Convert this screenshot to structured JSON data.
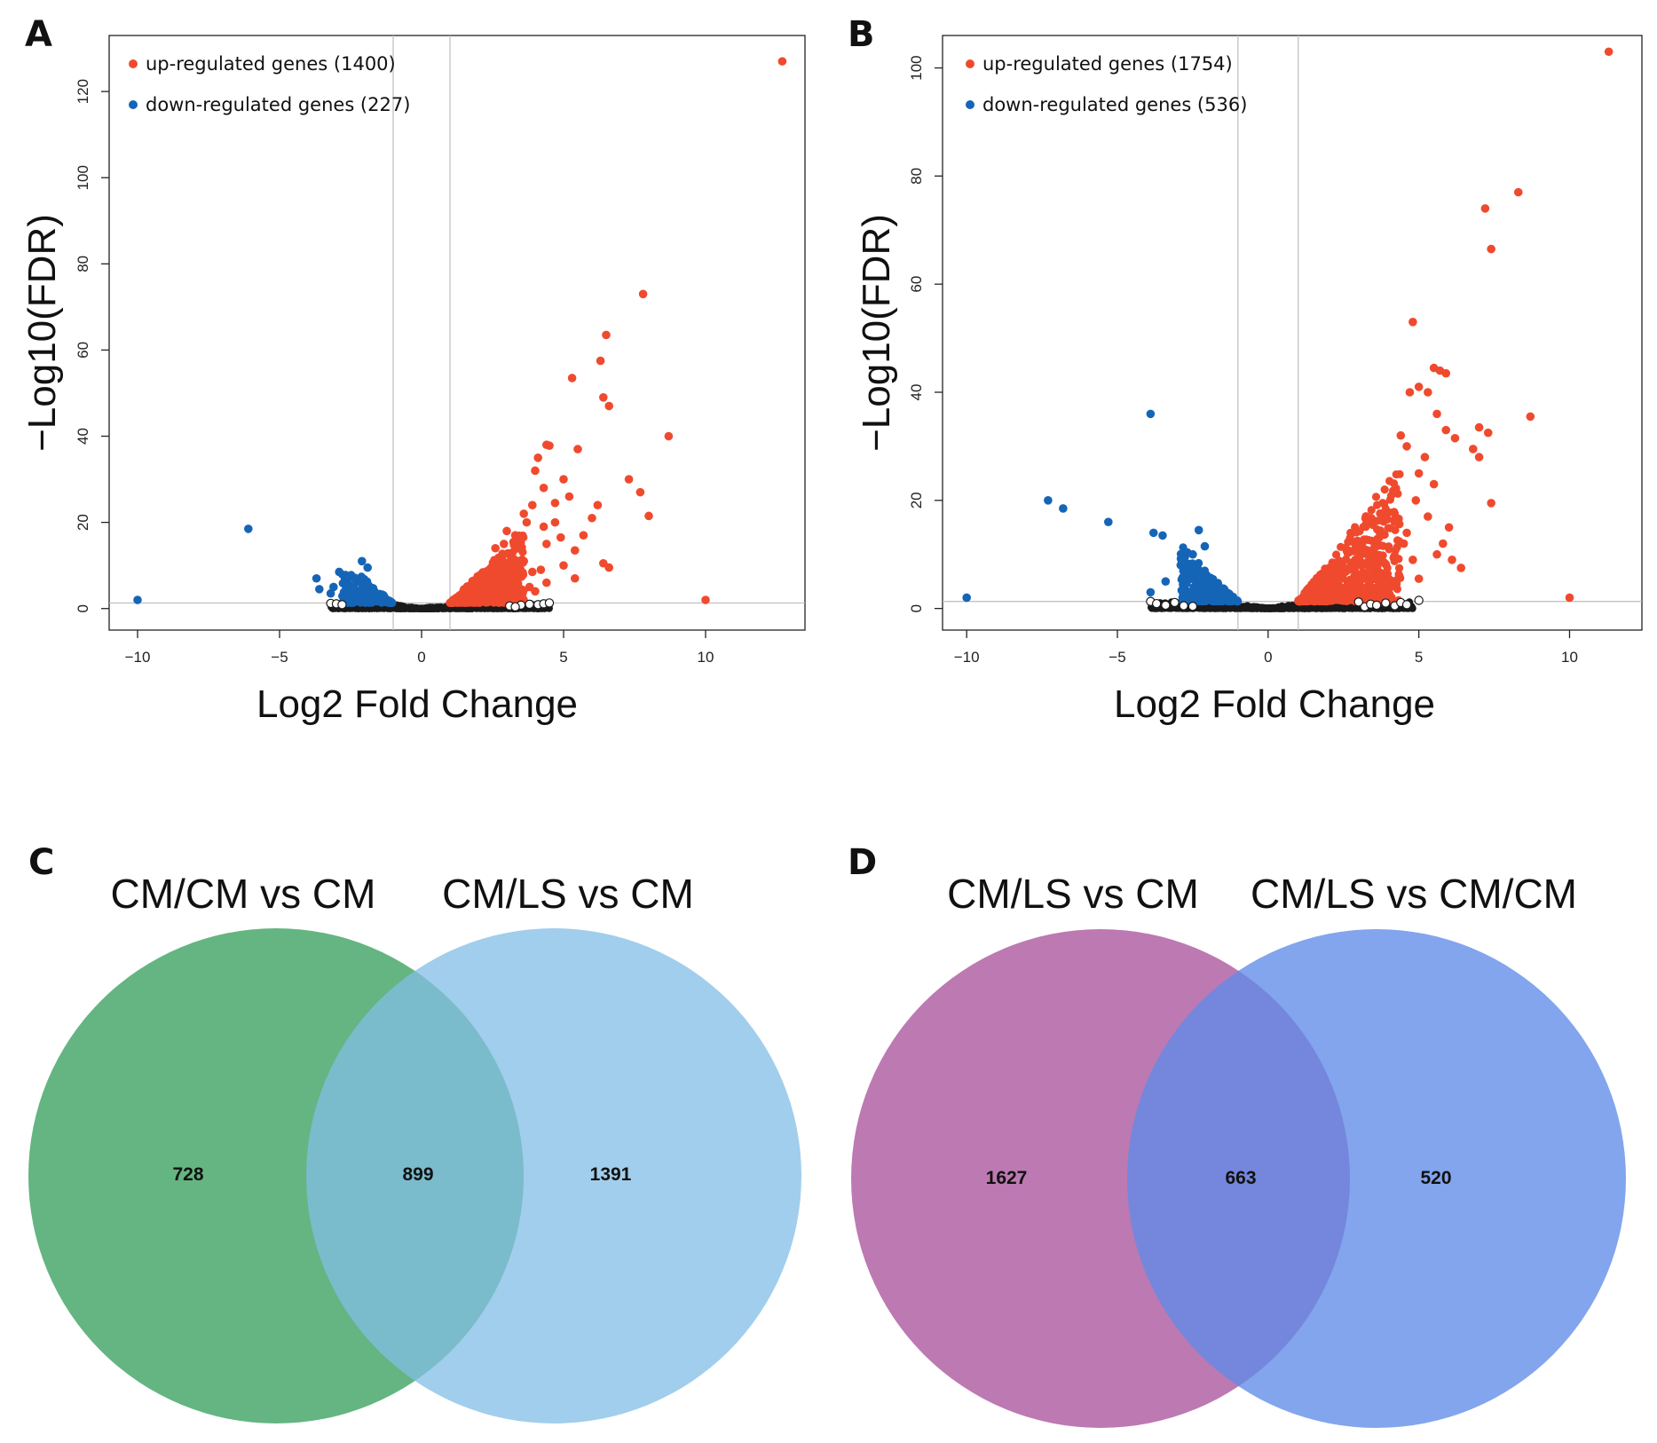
{
  "colors": {
    "up": "#f04a2e",
    "down": "#1565b7",
    "ns": "#1a1a1a",
    "venn_c_left": "#3da261",
    "venn_c_right": "#81bde6",
    "venn_d_left": "#ad579f",
    "venn_d_right": "#5f8ce8"
  },
  "chart_data": [
    {
      "panel": "A",
      "type": "scatter",
      "xlabel": "Log2 Fold Change",
      "ylabel": "−Log10(FDR)",
      "xlim": [
        -11,
        13.5
      ],
      "ylim": [
        -5,
        133
      ],
      "xticks": [
        -10,
        -5,
        0,
        5,
        10
      ],
      "xtick_labels": [
        "−10",
        "−5",
        "0",
        "5",
        "10"
      ],
      "yticks": [
        0,
        20,
        40,
        60,
        80,
        100,
        120
      ],
      "ytick_labels": [
        "0",
        "20",
        "40",
        "60",
        "80",
        "100",
        "120"
      ],
      "vlines": [
        -1,
        1
      ],
      "hline": 1.3,
      "legend_position": "top-left",
      "legend": [
        {
          "label": "up-regulated genes (1400)",
          "class": "up"
        },
        {
          "label": "down-regulated genes (227)",
          "class": "down"
        }
      ],
      "up_points": [
        [
          12.7,
          127
        ],
        [
          7.8,
          73
        ],
        [
          6.5,
          63.5
        ],
        [
          6.3,
          57.5
        ],
        [
          5.3,
          53.5
        ],
        [
          6.4,
          49
        ],
        [
          6.6,
          47
        ],
        [
          8.7,
          40
        ],
        [
          4.4,
          38
        ],
        [
          4.5,
          37.8
        ],
        [
          5.5,
          37
        ],
        [
          4.1,
          35
        ],
        [
          4.0,
          32
        ],
        [
          5.0,
          30
        ],
        [
          7.3,
          30
        ],
        [
          4.3,
          28
        ],
        [
          7.7,
          27
        ],
        [
          5.2,
          26
        ],
        [
          6.2,
          24
        ],
        [
          4.7,
          24.5
        ],
        [
          3.9,
          24
        ],
        [
          8.0,
          21.5
        ],
        [
          6.0,
          21
        ],
        [
          4.7,
          20
        ],
        [
          3.6,
          22
        ],
        [
          3.7,
          20
        ],
        [
          4.3,
          19
        ],
        [
          5.7,
          17
        ],
        [
          4.9,
          16.5
        ],
        [
          4.4,
          15
        ],
        [
          5.4,
          13.5
        ],
        [
          3.3,
          17
        ],
        [
          3.0,
          18
        ],
        [
          6.4,
          10.5
        ],
        [
          6.6,
          9.5
        ],
        [
          5.0,
          10
        ],
        [
          5.4,
          7
        ],
        [
          4.2,
          9
        ],
        [
          4.4,
          6
        ],
        [
          3.8,
          5
        ],
        [
          3.2,
          13
        ],
        [
          2.9,
          15
        ],
        [
          3.4,
          8
        ],
        [
          3.6,
          11
        ],
        [
          3.9,
          8.5
        ],
        [
          4.0,
          4
        ],
        [
          10.0,
          2
        ],
        [
          2.6,
          14
        ]
      ],
      "up_dense": {
        "count": 520,
        "xmin": 1.0,
        "xmax": 3.6,
        "ymin": 1.3,
        "ymax_scale": 6.5,
        "ymax_cap": 18,
        "seed": 11
      },
      "down_points": [
        [
          -10,
          2
        ],
        [
          -6.1,
          18.5
        ],
        [
          -3.7,
          7
        ],
        [
          -3.6,
          4.5
        ],
        [
          -3.1,
          5
        ],
        [
          -2.9,
          8.5
        ],
        [
          -2.7,
          4
        ],
        [
          -2.3,
          6.5
        ],
        [
          -2.1,
          11
        ],
        [
          -1.9,
          9.5
        ],
        [
          -2.5,
          3
        ],
        [
          -3.2,
          3.5
        ]
      ],
      "down_dense": {
        "count": 130,
        "xmin": -2.8,
        "xmax": -1.0,
        "ymin": 1.3,
        "ymax_scale": 5.5,
        "ymax_cap": 8,
        "seed": 7
      },
      "ns_dense": {
        "count": 900,
        "xmin": -3.2,
        "xmax": 4.5,
        "seed": 3
      },
      "ns_open": [
        [
          -3.2,
          1.2
        ],
        [
          -3.0,
          1.1
        ],
        [
          -2.8,
          0.9
        ],
        [
          3.1,
          0.6
        ],
        [
          3.5,
          0.8
        ],
        [
          3.8,
          1.0
        ],
        [
          4.1,
          0.9
        ],
        [
          4.3,
          1.1
        ],
        [
          4.5,
          1.3
        ],
        [
          3.3,
          0.4
        ]
      ]
    },
    {
      "panel": "B",
      "type": "scatter",
      "xlabel": "Log2 Fold Change",
      "ylabel": "−Log10(FDR)",
      "xlim": [
        -10.8,
        12.4
      ],
      "ylim": [
        -4,
        106
      ],
      "xticks": [
        -10,
        -5,
        0,
        5,
        10
      ],
      "xtick_labels": [
        "−10",
        "−5",
        "0",
        "5",
        "10"
      ],
      "yticks": [
        0,
        20,
        40,
        60,
        80,
        100
      ],
      "ytick_labels": [
        "0",
        "20",
        "40",
        "60",
        "80",
        "100"
      ],
      "vlines": [
        -1,
        1
      ],
      "hline": 1.3,
      "legend_position": "top-left",
      "legend": [
        {
          "label": "up-regulated genes (1754)",
          "class": "up"
        },
        {
          "label": "down-regulated genes (536)",
          "class": "down"
        }
      ],
      "up_points": [
        [
          11.3,
          103
        ],
        [
          8.3,
          77
        ],
        [
          7.2,
          74
        ],
        [
          7.4,
          66.5
        ],
        [
          4.8,
          53
        ],
        [
          5.5,
          44.5
        ],
        [
          5.7,
          44
        ],
        [
          5.9,
          43.5
        ],
        [
          5.0,
          41
        ],
        [
          5.3,
          40
        ],
        [
          4.7,
          40
        ],
        [
          8.7,
          35.5
        ],
        [
          5.6,
          36
        ],
        [
          7.0,
          33.5
        ],
        [
          7.3,
          32.5
        ],
        [
          6.8,
          29.5
        ],
        [
          7.0,
          28
        ],
        [
          5.9,
          33
        ],
        [
          6.2,
          31.5
        ],
        [
          4.4,
          32
        ],
        [
          4.6,
          30
        ],
        [
          5.2,
          28
        ],
        [
          5.0,
          25
        ],
        [
          5.5,
          23
        ],
        [
          4.9,
          20
        ],
        [
          7.4,
          19.5
        ],
        [
          5.3,
          17
        ],
        [
          6.0,
          15
        ],
        [
          5.8,
          12
        ],
        [
          6.1,
          9
        ],
        [
          6.4,
          7.5
        ],
        [
          5.0,
          5.5
        ],
        [
          4.8,
          9
        ],
        [
          4.5,
          12
        ],
        [
          4.6,
          14
        ],
        [
          5.6,
          10
        ],
        [
          10.0,
          2
        ],
        [
          4.2,
          16
        ],
        [
          3.9,
          18
        ]
      ],
      "up_dense": {
        "count": 620,
        "xmin": 1.0,
        "xmax": 4.4,
        "ymin": 1.3,
        "ymax_scale": 7.5,
        "ymax_cap": 32,
        "seed": 19
      },
      "down_points": [
        [
          -10,
          2
        ],
        [
          -7.3,
          20
        ],
        [
          -6.8,
          18.5
        ],
        [
          -5.3,
          16
        ],
        [
          -3.9,
          36
        ],
        [
          -3.8,
          14
        ],
        [
          -3.9,
          3
        ],
        [
          -3.5,
          13.5
        ],
        [
          -3.4,
          5
        ],
        [
          -2.9,
          8
        ],
        [
          -2.8,
          6
        ],
        [
          -2.5,
          10
        ],
        [
          -2.1,
          11.5
        ],
        [
          -2.3,
          14.5
        ]
      ],
      "down_dense": {
        "count": 230,
        "xmin": -2.9,
        "xmax": -1.0,
        "ymin": 1.3,
        "ymax_scale": 5.5,
        "ymax_cap": 11.5,
        "seed": 23
      },
      "ns_dense": {
        "count": 950,
        "xmin": -3.9,
        "xmax": 4.8,
        "seed": 5
      },
      "ns_open": [
        [
          -3.9,
          1.3
        ],
        [
          -3.7,
          0.9
        ],
        [
          -3.4,
          0.6
        ],
        [
          -3.1,
          1.1
        ],
        [
          -2.8,
          0.5
        ],
        [
          3.2,
          0.3
        ],
        [
          3.4,
          0.8
        ],
        [
          3.6,
          0.6
        ],
        [
          3.9,
          1.0
        ],
        [
          4.2,
          0.5
        ],
        [
          4.4,
          1.1
        ],
        [
          5.0,
          1.5
        ],
        [
          4.6,
          0.7
        ],
        [
          3.0,
          1.2
        ],
        [
          -2.5,
          0.4
        ]
      ]
    },
    {
      "panel": "C",
      "type": "venn",
      "sets": [
        {
          "name": "CM/CM vs CM",
          "only": "728"
        },
        {
          "name": "CM/LS vs CM",
          "only": "1391"
        }
      ],
      "overlap": "899"
    },
    {
      "panel": "D",
      "type": "venn",
      "sets": [
        {
          "name": "CM/LS vs CM",
          "only": "1627"
        },
        {
          "name": "CM/LS vs CM/CM",
          "only": "520"
        }
      ],
      "overlap": "663"
    }
  ]
}
